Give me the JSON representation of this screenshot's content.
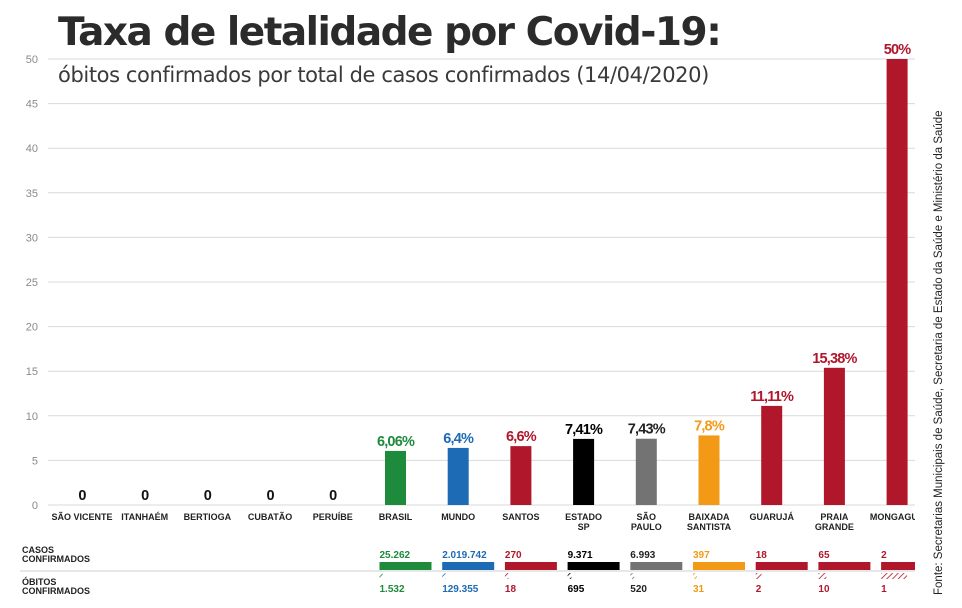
{
  "title": "Taxa de letalidade por Covid-19:",
  "subtitle": "óbitos confirmados por total de casos confirmados (14/04/2020)",
  "source": "Fonte: Secretarias Municipais de Saúde, Secretaria de Estado da Saúde e Ministério da Saúde",
  "chart_data": {
    "type": "bar",
    "title": "Taxa de letalidade por Covid-19:",
    "subtitle": "óbitos confirmados por total de casos confirmados (14/04/2020)",
    "ylim": [
      0,
      50
    ],
    "yticks": [
      "0",
      "5",
      "10",
      "15",
      "20",
      "25",
      "30",
      "35",
      "40",
      "45",
      "50"
    ],
    "grid": true,
    "categories": [
      [
        "SÃO VICENTE"
      ],
      [
        "ITANHAÉM"
      ],
      [
        "BERTIOGA"
      ],
      [
        "CUBATÃO"
      ],
      [
        "PERUÍBE"
      ],
      [
        "BRASIL"
      ],
      [
        "MUNDO"
      ],
      [
        "SANTOS"
      ],
      [
        "ESTADO",
        "SP"
      ],
      [
        "SÃO",
        "PAULO"
      ],
      [
        "BAIXADA",
        "SANTISTA"
      ],
      [
        "GUARUJÁ"
      ],
      [
        "PRAIA",
        "GRANDE"
      ],
      [
        "MONGAGUÁ"
      ]
    ],
    "values": [
      0,
      0,
      0,
      0,
      0,
      6.06,
      6.4,
      6.6,
      7.41,
      7.43,
      7.8,
      11.11,
      15.38,
      50
    ],
    "value_labels": [
      "0",
      "0",
      "0",
      "0",
      "0",
      "6,06%",
      "6,4%",
      "6,6%",
      "7,41%",
      "7,43%",
      "7,8%",
      "11,11%",
      "15,38%",
      "50%"
    ],
    "colors": [
      "#111111",
      "#111111",
      "#111111",
      "#111111",
      "#111111",
      "#1e8a3c",
      "#1d6bb5",
      "#b0172b",
      "#000000",
      "#737373",
      "#f29a16",
      "#b0172b",
      "#b0172b",
      "#b0172b"
    ],
    "label_colors": [
      "#111111",
      "#111111",
      "#111111",
      "#111111",
      "#111111",
      "#1e8a3c",
      "#1d6bb5",
      "#b0172b",
      "#000000",
      "#222222",
      "#f29a16",
      "#b0172b",
      "#b0172b",
      "#b0172b"
    ],
    "casos_label": [
      "CASOS",
      "CONFIRMADOS"
    ],
    "obitos_label": [
      "ÓBITOS",
      "CONFIRMADOS"
    ],
    "casos": [
      "",
      "",
      "",
      "",
      "",
      "25.262",
      "2.019.742",
      "270",
      "9.371",
      "6.993",
      "397",
      "18",
      "65",
      "2"
    ],
    "obitos": [
      "",
      "",
      "",
      "",
      "",
      "1.532",
      "129.355",
      "18",
      "695",
      "520",
      "31",
      "2",
      "10",
      "1"
    ],
    "obitos_fraction": [
      0,
      0,
      0,
      0,
      0,
      0.06,
      0.064,
      0.066,
      0.074,
      0.074,
      0.078,
      0.111,
      0.154,
      0.5
    ]
  }
}
